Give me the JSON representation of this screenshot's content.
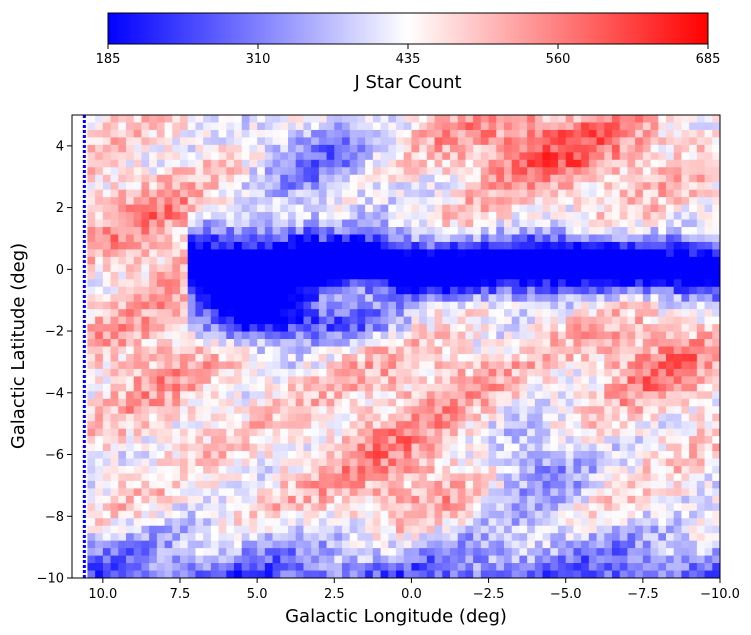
{
  "chart_data": {
    "type": "heatmap",
    "title": "",
    "xlabel": "Galactic Longitude (deg)",
    "ylabel": "Galactic Latitude (deg)",
    "xlim": [
      11,
      -10
    ],
    "ylim": [
      -10,
      5
    ],
    "x_ticks": [
      "10.0",
      "7.5",
      "5.0",
      "2.5",
      "0.0",
      "−2.5",
      "−5.0",
      "−7.5",
      "−10.0"
    ],
    "x_tick_values": [
      10,
      7.5,
      5,
      2.5,
      0,
      -2.5,
      -5,
      -7.5,
      -10
    ],
    "y_ticks": [
      "4",
      "2",
      "0",
      "−2",
      "−4",
      "−6",
      "−8",
      "−10"
    ],
    "y_tick_values": [
      4,
      2,
      0,
      -2,
      -4,
      -6,
      -8,
      -10
    ],
    "colorbar": {
      "label": "J Star Count",
      "orientation": "horizontal",
      "location": "top",
      "vmin": 185,
      "vmax": 685,
      "ticks": [
        "185",
        "310",
        "435",
        "560",
        "685"
      ],
      "tick_values": [
        185,
        310,
        435,
        560,
        685
      ],
      "colormap": "bwr",
      "colors": [
        "#0000ff",
        "#ffffff",
        "#ff0000"
      ]
    },
    "grid": false,
    "features": [
      {
        "kind": "low-count band (galactic plane)",
        "l_range": [
          7,
          -10
        ],
        "b_approx": 0,
        "value": 185
      },
      {
        "kind": "high-count region",
        "l_range": [
          -2,
          -7
        ],
        "b_range": [
          2,
          5
        ],
        "value": 640
      },
      {
        "kind": "high-count region",
        "l_range": [
          -6,
          -10
        ],
        "b_range": [
          -4,
          -2
        ],
        "value": 600
      },
      {
        "kind": "high-count region",
        "l_range": [
          3,
          -2
        ],
        "b_range": [
          -9,
          -4
        ],
        "value": 560
      },
      {
        "kind": "low-count band",
        "l_range": [
          11,
          -10
        ],
        "b_range": [
          -10,
          -8
        ],
        "value": 300
      }
    ]
  }
}
